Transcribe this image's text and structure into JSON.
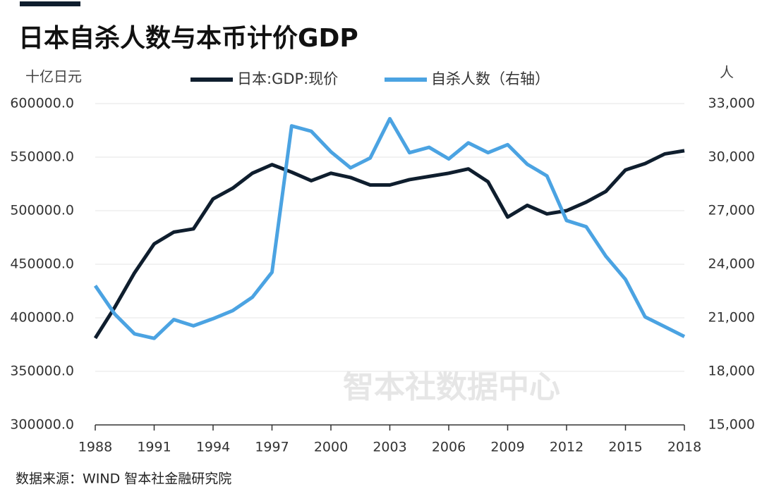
{
  "chart_data": {
    "type": "line",
    "title": "日本自杀人数与本币计价GDP",
    "y_label": "十亿日元",
    "y2_label": "人",
    "watermark": "智本社数据中心",
    "source": "数据来源：WIND 智本社金融研究院",
    "x": [
      1988,
      1989,
      1990,
      1991,
      1992,
      1993,
      1994,
      1995,
      1996,
      1997,
      1998,
      1999,
      2000,
      2001,
      2002,
      2003,
      2004,
      2005,
      2006,
      2007,
      2008,
      2009,
      2010,
      2011,
      2012,
      2013,
      2014,
      2015,
      2016,
      2017,
      2018
    ],
    "series": [
      {
        "name": "日本:GDP:现价",
        "color": "#0f1e2e",
        "values": [
          381000,
          410000,
          442000,
          469000,
          480000,
          483000,
          511000,
          521000,
          535000,
          543000,
          536000,
          528000,
          535000,
          531000,
          524000,
          524000,
          529000,
          532000,
          535000,
          539000,
          527000,
          494000,
          505000,
          497000,
          500000,
          508000,
          518000,
          538000,
          544000,
          553000,
          556000
        ]
      },
      {
        "name": "自杀人数（右轴）",
        "color": "#4ba3e2",
        "axis": "y2",
        "values": [
          22800,
          21200,
          20100,
          19850,
          20900,
          20550,
          20950,
          21400,
          22150,
          23550,
          31750,
          31450,
          30300,
          29400,
          29950,
          32150,
          30250,
          30550,
          29900,
          30800,
          30250,
          30700,
          29600,
          28950,
          26450,
          26100,
          24450,
          23150,
          21050,
          20500,
          19950
        ]
      }
    ],
    "xlim": [
      1988,
      2018
    ],
    "xticks": [
      1988,
      1991,
      1994,
      1997,
      2000,
      2003,
      2006,
      2009,
      2012,
      2015,
      2018
    ],
    "ylim": [
      300000,
      600000
    ],
    "yticks": [
      {
        "value": 300000,
        "label": "300000.0"
      },
      {
        "value": 350000,
        "label": "350000.0"
      },
      {
        "value": 400000,
        "label": "400000.0"
      },
      {
        "value": 450000,
        "label": "450000.0"
      },
      {
        "value": 500000,
        "label": "500000.0"
      },
      {
        "value": 550000,
        "label": "550000.0"
      },
      {
        "value": 600000,
        "label": "600000.0"
      }
    ],
    "y2lim": [
      15000,
      33000
    ],
    "y2ticks": [
      {
        "value": 15000,
        "label": "15,000"
      },
      {
        "value": 18000,
        "label": "18,000"
      },
      {
        "value": 21000,
        "label": "21,000"
      },
      {
        "value": 24000,
        "label": "24,000"
      },
      {
        "value": 27000,
        "label": "27,000"
      },
      {
        "value": 30000,
        "label": "30,000"
      },
      {
        "value": 33000,
        "label": "33,000"
      }
    ],
    "grid": true
  }
}
